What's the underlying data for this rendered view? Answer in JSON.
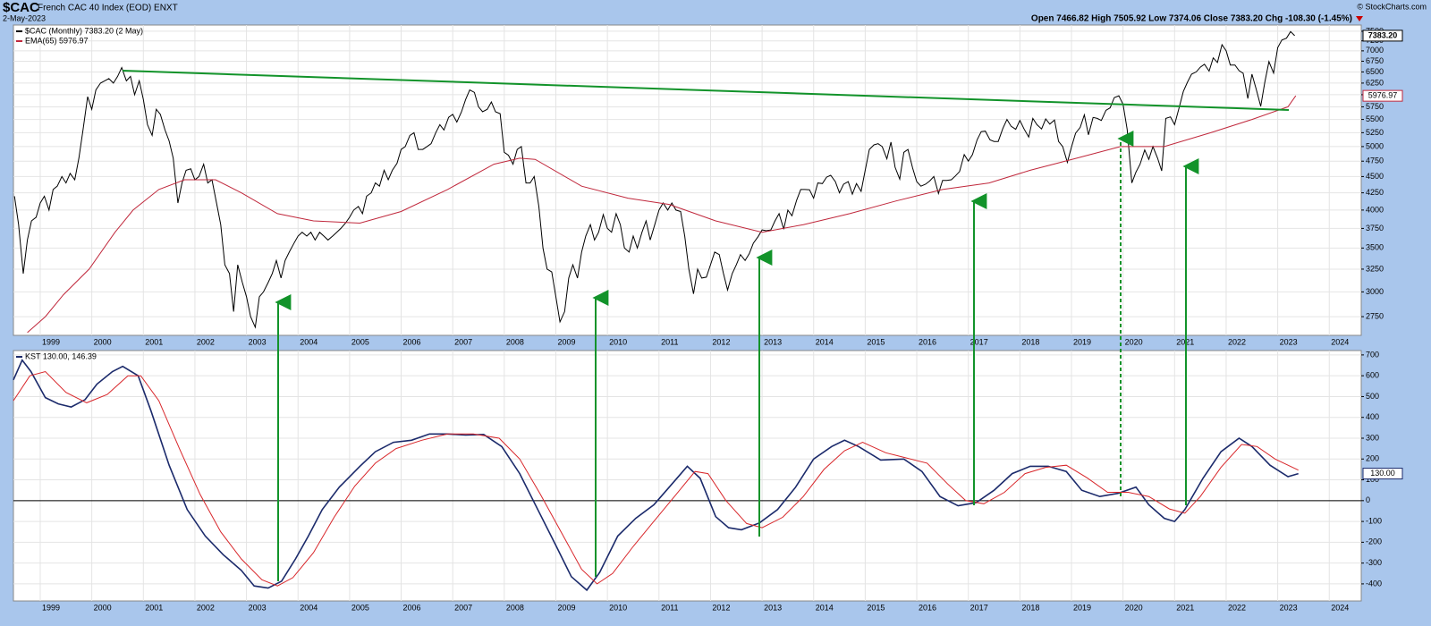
{
  "header": {
    "symbol": "$CAC",
    "name": "French CAC 40 Index (EOD) ENXT",
    "date": "2-May-2023",
    "quote": "Open 7466.82 High 7505.92 Low 7374.06 Close 7383.20 Chg -108.30 (-1.45%)",
    "credit": "© StockCharts.com"
  },
  "chart_data": [
    {
      "type": "line",
      "log": true,
      "grid": true,
      "xlim": [
        1998.48,
        2024.62
      ],
      "xticks": [
        1999,
        2000,
        2001,
        2002,
        2003,
        2004,
        2005,
        2006,
        2007,
        2008,
        2009,
        2010,
        2011,
        2012,
        2013,
        2014,
        2015,
        2016,
        2017,
        2018,
        2019,
        2020,
        2021,
        2022,
        2023,
        2024
      ],
      "ylim": [
        2575,
        7665
      ],
      "yticks": [
        2750,
        3000,
        3250,
        3500,
        3750,
        4000,
        4250,
        4500,
        4750,
        5000,
        5250,
        5500,
        5750,
        6000,
        6250,
        6500,
        6750,
        7000,
        7250,
        7500
      ],
      "x": [
        1998.5,
        1998.58,
        1998.67,
        1998.75,
        1998.83,
        1998.92,
        1999,
        1999.08,
        1999.17,
        1999.25,
        1999.33,
        1999.42,
        1999.5,
        1999.58,
        1999.67,
        1999.75,
        1999.83,
        1999.92,
        2000,
        2000.08,
        2000.17,
        2000.25,
        2000.33,
        2000.42,
        2000.5,
        2000.58,
        2000.67,
        2000.75,
        2000.83,
        2000.92,
        2001,
        2001.08,
        2001.17,
        2001.25,
        2001.33,
        2001.42,
        2001.5,
        2001.58,
        2001.67,
        2001.75,
        2001.83,
        2001.92,
        2002,
        2002.08,
        2002.17,
        2002.25,
        2002.33,
        2002.42,
        2002.5,
        2002.58,
        2002.67,
        2002.75,
        2002.83,
        2002.92,
        2003,
        2003.08,
        2003.17,
        2003.25,
        2003.33,
        2003.42,
        2003.5,
        2003.58,
        2003.67,
        2003.75,
        2003.83,
        2003.92,
        2004,
        2004.08,
        2004.17,
        2004.25,
        2004.33,
        2004.42,
        2004.5,
        2004.58,
        2004.67,
        2004.75,
        2004.83,
        2004.92,
        2005,
        2005.08,
        2005.17,
        2005.25,
        2005.33,
        2005.42,
        2005.5,
        2005.58,
        2005.67,
        2005.75,
        2005.83,
        2005.92,
        2006,
        2006.08,
        2006.17,
        2006.25,
        2006.33,
        2006.42,
        2006.5,
        2006.58,
        2006.67,
        2006.75,
        2006.83,
        2006.92,
        2007,
        2007.08,
        2007.17,
        2007.25,
        2007.33,
        2007.42,
        2007.5,
        2007.58,
        2007.67,
        2007.75,
        2007.83,
        2007.92,
        2008,
        2008.08,
        2008.17,
        2008.25,
        2008.33,
        2008.42,
        2008.5,
        2008.58,
        2008.67,
        2008.75,
        2008.83,
        2008.92,
        2009,
        2009.08,
        2009.17,
        2009.25,
        2009.33,
        2009.42,
        2009.5,
        2009.58,
        2009.67,
        2009.75,
        2009.83,
        2009.92,
        2010,
        2010.08,
        2010.17,
        2010.25,
        2010.33,
        2010.42,
        2010.5,
        2010.58,
        2010.67,
        2010.75,
        2010.83,
        2010.92,
        2011,
        2011.08,
        2011.17,
        2011.25,
        2011.33,
        2011.42,
        2011.5,
        2011.58,
        2011.67,
        2011.75,
        2011.83,
        2011.92,
        2012,
        2012.08,
        2012.17,
        2012.25,
        2012.33,
        2012.42,
        2012.5,
        2012.58,
        2012.67,
        2012.75,
        2012.83,
        2012.92,
        2013,
        2013.08,
        2013.17,
        2013.25,
        2013.33,
        2013.42,
        2013.5,
        2013.58,
        2013.67,
        2013.75,
        2013.83,
        2013.92,
        2014,
        2014.08,
        2014.17,
        2014.25,
        2014.33,
        2014.42,
        2014.5,
        2014.58,
        2014.67,
        2014.75,
        2014.83,
        2014.92,
        2015,
        2015.08,
        2015.17,
        2015.25,
        2015.33,
        2015.42,
        2015.5,
        2015.58,
        2015.67,
        2015.75,
        2015.83,
        2015.92,
        2016,
        2016.08,
        2016.17,
        2016.25,
        2016.33,
        2016.42,
        2016.5,
        2016.58,
        2016.67,
        2016.75,
        2016.83,
        2016.92,
        2017,
        2017.08,
        2017.17,
        2017.25,
        2017.33,
        2017.42,
        2017.5,
        2017.58,
        2017.67,
        2017.75,
        2017.83,
        2017.92,
        2018,
        2018.08,
        2018.17,
        2018.25,
        2018.33,
        2018.42,
        2018.5,
        2018.58,
        2018.67,
        2018.75,
        2018.83,
        2018.92,
        2019,
        2019.08,
        2019.17,
        2019.25,
        2019.33,
        2019.42,
        2019.5,
        2019.58,
        2019.67,
        2019.75,
        2019.83,
        2019.92,
        2020,
        2020.08,
        2020.17,
        2020.25,
        2020.33,
        2020.42,
        2020.5,
        2020.58,
        2020.67,
        2020.75,
        2020.83,
        2020.92,
        2021,
        2021.08,
        2021.17,
        2021.25,
        2021.33,
        2021.42,
        2021.5,
        2021.58,
        2021.67,
        2021.75,
        2021.83,
        2021.92,
        2022,
        2022.08,
        2022.17,
        2022.25,
        2022.33,
        2022.42,
        2022.5,
        2022.58,
        2022.67,
        2022.75,
        2022.83,
        2022.92,
        2023,
        2023.08,
        2023.17,
        2023.25,
        2023.33
      ],
      "series": [
        {
          "name": "$CAC (Monthly) 7383.20 (2 May)",
          "color": "#000000",
          "last_value_label": "7383.20",
          "values": [
            4200,
            3800,
            3200,
            3600,
            3850,
            3900,
            4100,
            4200,
            4000,
            4300,
            4350,
            4500,
            4400,
            4550,
            4450,
            4800,
            5300,
            5958,
            5700,
            6100,
            6250,
            6300,
            6350,
            6250,
            6400,
            6600,
            6300,
            6400,
            6000,
            6300,
            5900,
            5400,
            5200,
            5700,
            5600,
            5300,
            5100,
            4800,
            4100,
            4400,
            4600,
            4624,
            4450,
            4500,
            4700,
            4400,
            4450,
            4100,
            3800,
            3300,
            3200,
            2800,
            3300,
            3100,
            2950,
            2750,
            2650,
            2950,
            3000,
            3100,
            3200,
            3350,
            3150,
            3350,
            3450,
            3557,
            3650,
            3700,
            3650,
            3700,
            3600,
            3700,
            3650,
            3600,
            3650,
            3700,
            3750,
            3821,
            3900,
            4000,
            4050,
            3950,
            4200,
            4250,
            4400,
            4350,
            4600,
            4450,
            4600,
            4715,
            4950,
            5000,
            5200,
            5250,
            4950,
            4950,
            5000,
            5050,
            5250,
            5400,
            5300,
            5542,
            5600,
            5450,
            5650,
            5900,
            6100,
            6050,
            5750,
            5650,
            5700,
            5850,
            5650,
            5614,
            4900,
            4850,
            4700,
            4950,
            5000,
            4400,
            4400,
            4500,
            4050,
            3500,
            3250,
            3218,
            2950,
            2700,
            2800,
            3150,
            3300,
            3150,
            3450,
            3650,
            3800,
            3600,
            3700,
            3936,
            3750,
            3700,
            3950,
            3800,
            3500,
            3450,
            3650,
            3500,
            3700,
            3850,
            3600,
            3805,
            4000,
            4100,
            4000,
            4100,
            4000,
            3980,
            3650,
            3250,
            2980,
            3250,
            3150,
            3160,
            3300,
            3450,
            3420,
            3200,
            3020,
            3200,
            3300,
            3420,
            3350,
            3430,
            3560,
            3641,
            3730,
            3720,
            3730,
            3850,
            3950,
            3740,
            4000,
            3920,
            4140,
            4300,
            4300,
            4296,
            4170,
            4400,
            4390,
            4490,
            4520,
            4420,
            4250,
            4380,
            4420,
            4230,
            4390,
            4272,
            4600,
            4950,
            5030,
            5050,
            5000,
            4790,
            5080,
            4650,
            4460,
            4900,
            4950,
            4637,
            4420,
            4350,
            4380,
            4430,
            4500,
            4240,
            4440,
            4440,
            4450,
            4510,
            4580,
            4862,
            4750,
            4860,
            5120,
            5270,
            5280,
            5120,
            5090,
            5090,
            5330,
            5500,
            5370,
            5313,
            5480,
            5320,
            5170,
            5520,
            5400,
            5320,
            5510,
            5410,
            5490,
            5090,
            5000,
            4731,
            4990,
            5240,
            5350,
            5590,
            5210,
            5540,
            5520,
            5480,
            5680,
            5730,
            5940,
            5978,
            5800,
            5310,
            4400,
            4570,
            4700,
            4940,
            4780,
            5000,
            4800,
            4590,
            5520,
            5551,
            5400,
            5700,
            6070,
            6270,
            6450,
            6500,
            6610,
            6680,
            6520,
            6830,
            6720,
            7153,
            7000,
            6660,
            6660,
            6530,
            6470,
            5920,
            6450,
            6130,
            5760,
            6270,
            6740,
            6474,
            7080,
            7270,
            7320,
            7490,
            7383.2
          ]
        },
        {
          "name": "EMA(65) 5976.97",
          "color": "#c0283c",
          "last_value_label": "5976.97",
          "x": [
            1998.75,
            1999.1,
            1999.45,
            1999.95,
            2000.45,
            2000.8,
            2001.3,
            2001.8,
            2002.4,
            2002.9,
            2003.6,
            2004.3,
            2005.2,
            2006.0,
            2006.9,
            2007.8,
            2008.3,
            2008.6,
            2009.5,
            2010.4,
            2011.2,
            2012.1,
            2013.0,
            2013.8,
            2014.7,
            2015.6,
            2016.5,
            2017.4,
            2018.2,
            2019.1,
            2019.95,
            2020.8,
            2021.7,
            2022.5,
            2023.2,
            2023.35
          ],
          "values": [
            2600,
            2750,
            2970,
            3250,
            3700,
            4000,
            4300,
            4450,
            4450,
            4250,
            3950,
            3850,
            3820,
            3980,
            4300,
            4700,
            4800,
            4780,
            4350,
            4170,
            4080,
            3850,
            3700,
            3800,
            3950,
            4130,
            4300,
            4400,
            4600,
            4800,
            5000,
            5000,
            5250,
            5500,
            5750,
            5976.97
          ]
        }
      ]
    },
    {
      "type": "line",
      "log": false,
      "grid": true,
      "xlim": [
        1998.48,
        2024.62
      ],
      "xticks": [
        1999,
        2000,
        2001,
        2002,
        2003,
        2004,
        2005,
        2006,
        2007,
        2008,
        2009,
        2010,
        2011,
        2012,
        2013,
        2014,
        2015,
        2016,
        2017,
        2018,
        2019,
        2020,
        2021,
        2022,
        2023,
        2024
      ],
      "ylim": [
        -482,
        721
      ],
      "yticks": [
        -400,
        -300,
        -200,
        -100,
        0,
        100,
        200,
        300,
        400,
        500,
        600,
        700
      ],
      "series": [
        {
          "name": "KST 130.00, 146.39",
          "color": "#1b2a6b",
          "last_value_label": "130.00",
          "x": [
            1998.48,
            1998.65,
            1998.82,
            1999.1,
            1999.35,
            1999.6,
            1999.87,
            2000.1,
            2000.4,
            2000.6,
            2000.9,
            2001.15,
            2001.5,
            2001.85,
            2002.2,
            2002.55,
            2002.9,
            2003.15,
            2003.42,
            2003.68,
            2003.95,
            2004.2,
            2004.47,
            2004.8,
            2005.2,
            2005.5,
            2005.85,
            2006.2,
            2006.55,
            2006.9,
            2007.25,
            2007.6,
            2007.95,
            2008.3,
            2008.65,
            2009.0,
            2009.3,
            2009.6,
            2009.85,
            2010.2,
            2010.55,
            2010.9,
            2011.2,
            2011.55,
            2011.8,
            2012.1,
            2012.35,
            2012.6,
            2012.95,
            2013.3,
            2013.65,
            2014.0,
            2014.35,
            2014.6,
            2014.87,
            2015.3,
            2015.75,
            2016.1,
            2016.45,
            2016.8,
            2017.15,
            2017.5,
            2017.85,
            2018.2,
            2018.55,
            2018.9,
            2019.2,
            2019.55,
            2019.9,
            2020.25,
            2020.5,
            2020.8,
            2021.0,
            2021.2,
            2021.55,
            2021.9,
            2022.25,
            2022.5,
            2022.85,
            2023.2,
            2023.4
          ],
          "values": [
            580,
            675,
            620,
            495,
            465,
            450,
            485,
            560,
            620,
            645,
            600,
            430,
            170,
            -43,
            -170,
            -260,
            -335,
            -410,
            -420,
            -387,
            -280,
            -170,
            -43,
            65,
            165,
            235,
            280,
            290,
            320,
            320,
            315,
            318,
            260,
            130,
            -43,
            -215,
            -365,
            -430,
            -345,
            -170,
            -85,
            -20,
            65,
            165,
            107,
            -77,
            -130,
            -140,
            -107,
            -43,
            65,
            200,
            260,
            290,
            260,
            195,
            200,
            140,
            20,
            -25,
            -10,
            50,
            130,
            165,
            165,
            140,
            50,
            20,
            35,
            65,
            -20,
            -85,
            -100,
            -43,
            107,
            235,
            300,
            260,
            170,
            115,
            130.0
          ]
        },
        {
          "color": "#d8262a",
          "x": [
            1998.48,
            1998.8,
            1999.1,
            1999.5,
            1999.9,
            2000.3,
            2000.7,
            2000.95,
            2001.3,
            2001.7,
            2002.1,
            2002.5,
            2002.9,
            2003.3,
            2003.6,
            2003.9,
            2004.3,
            2004.7,
            2005.1,
            2005.5,
            2005.9,
            2006.4,
            2006.9,
            2007.4,
            2007.9,
            2008.3,
            2008.7,
            2009.1,
            2009.5,
            2009.8,
            2010.1,
            2010.5,
            2010.9,
            2011.3,
            2011.7,
            2011.95,
            2012.3,
            2012.7,
            2013.0,
            2013.4,
            2013.8,
            2014.2,
            2014.6,
            2014.95,
            2015.4,
            2015.8,
            2016.2,
            2016.6,
            2016.95,
            2017.3,
            2017.7,
            2018.1,
            2018.5,
            2018.9,
            2019.3,
            2019.7,
            2020.1,
            2020.5,
            2020.9,
            2021.2,
            2021.5,
            2021.9,
            2022.3,
            2022.6,
            2022.95,
            2023.4
          ],
          "values": [
            480,
            600,
            620,
            520,
            470,
            510,
            600,
            600,
            480,
            250,
            30,
            -150,
            -280,
            -380,
            -410,
            -370,
            -250,
            -80,
            70,
            180,
            250,
            290,
            320,
            320,
            300,
            200,
            30,
            -150,
            -330,
            -400,
            -350,
            -220,
            -100,
            20,
            140,
            130,
            0,
            -110,
            -130,
            -80,
            20,
            150,
            240,
            280,
            230,
            205,
            180,
            80,
            0,
            -15,
            40,
            130,
            160,
            170,
            110,
            40,
            40,
            20,
            -40,
            -60,
            20,
            160,
            270,
            260,
            200,
            146.39
          ]
        }
      ]
    }
  ]
}
